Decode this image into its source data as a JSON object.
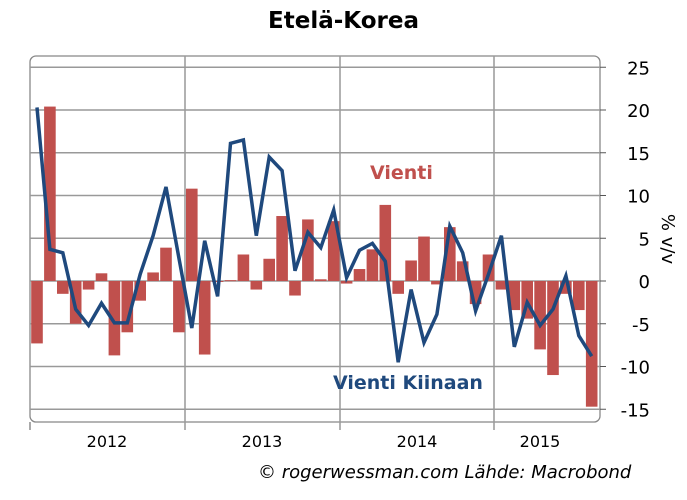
{
  "chart_data": {
    "type": "bar+line",
    "title": "Etelä-Korea",
    "ylabel": "% v/v",
    "ylim": [
      -15,
      25
    ],
    "yticks": [
      25,
      20,
      15,
      10,
      5,
      0,
      -5,
      -10,
      -15
    ],
    "ytick_labels": [
      "25",
      "20",
      "15",
      "10",
      "5",
      "0",
      "-5",
      "-10",
      "-15"
    ],
    "grid": true,
    "x_period": "monthly, Jan 2012 – Aug 2015",
    "year_labels": [
      "2012",
      "2013",
      "2014",
      "2015"
    ],
    "series": [
      {
        "name": "Vienti",
        "type": "bar",
        "color": "#c0504d",
        "values": [
          -7.3,
          20.4,
          -1.5,
          -5,
          -1,
          0.9,
          -8.7,
          -6,
          -2.3,
          1,
          3.9,
          -6,
          10.8,
          -8.6,
          0,
          0.1,
          3.1,
          -1,
          2.6,
          7.6,
          -1.7,
          7.2,
          0.2,
          7,
          -0.3,
          1.4,
          3.7,
          8.9,
          -1.5,
          2.4,
          5.2,
          -0.4,
          6.3,
          2.3,
          -2.7,
          3.1,
          -1,
          -3.4,
          -4.4,
          -8,
          -11,
          -1.5,
          -3.4,
          -14.7
        ]
      },
      {
        "name": "Vienti Kiinaan",
        "type": "line",
        "color": "#1f497d",
        "values": [
          20.3,
          3.7,
          3.3,
          -3.3,
          -5.2,
          -2.6,
          -4.9,
          -4.9,
          0.8,
          5.3,
          11,
          2.7,
          -5.5,
          4.7,
          -1.8,
          16.1,
          16.5,
          5.3,
          14.5,
          12.9,
          1.2,
          5.7,
          3.9,
          8.3,
          0.4,
          3.6,
          4.4,
          2.3,
          -9.5,
          -1,
          -7.2,
          -3.9,
          6.4,
          3.3,
          -3.5,
          0.8,
          5.3,
          -7.7,
          -2.5,
          -5.2,
          -3.3,
          0.6,
          -6.4,
          -8.8
        ]
      }
    ],
    "annotations": [
      "Vienti",
      "Vienti Kiinaan"
    ]
  },
  "credit": "© rogerwessman.com Lähde: Macrobond"
}
